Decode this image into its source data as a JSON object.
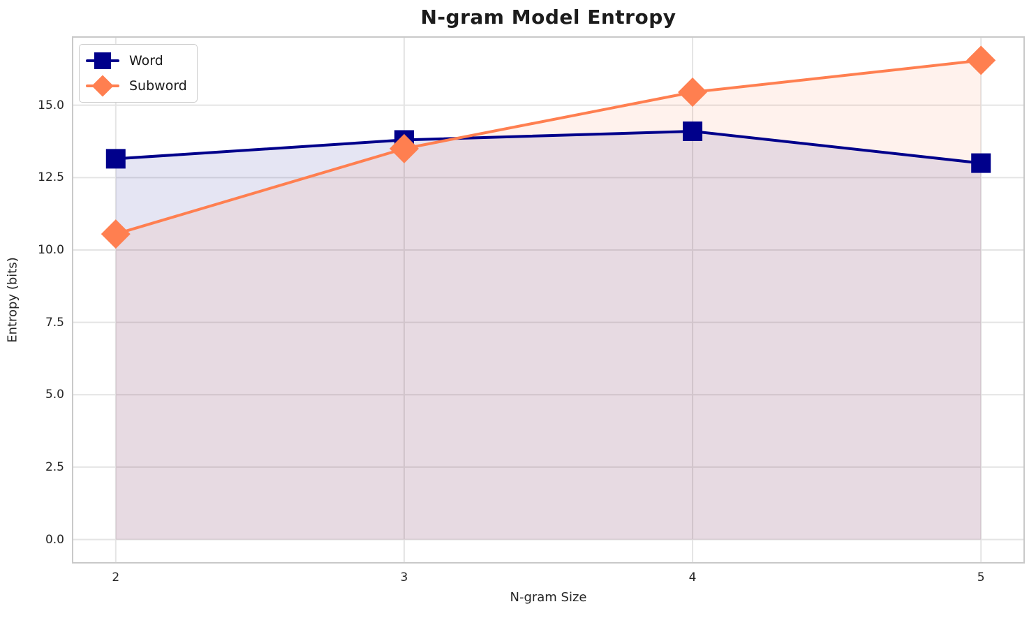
{
  "chart_data": {
    "type": "line",
    "title": "N-gram Model Entropy",
    "xlabel": "N-gram Size",
    "ylabel": "Entropy (bits)",
    "x": [
      2,
      3,
      4,
      5
    ],
    "series": [
      {
        "name": "Word",
        "values": [
          13.15,
          13.8,
          14.1,
          13.0
        ],
        "color": "#00008B",
        "marker": "square"
      },
      {
        "name": "Subword",
        "values": [
          10.55,
          13.5,
          15.45,
          16.55
        ],
        "color": "#FF7F50",
        "marker": "diamond"
      }
    ],
    "xticks": [
      2,
      3,
      4,
      5
    ],
    "xtick_labels": [
      "2",
      "3",
      "4",
      "5"
    ],
    "yticks": [
      0.0,
      2.5,
      5.0,
      7.5,
      10.0,
      12.5,
      15.0
    ],
    "ytick_labels": [
      "0.0",
      "2.5",
      "5.0",
      "7.5",
      "10.0",
      "12.5",
      "15.0"
    ],
    "xlim": [
      1.848,
      5.152
    ],
    "ylim": [
      -0.83,
      17.38
    ],
    "fill_to_baseline": 0,
    "fill_alpha": 0.1,
    "grid": true,
    "legend_position": "upper left",
    "grid_color": "#e4e4e4",
    "spine_color": "#c9c9c9",
    "line_width": 4
  }
}
